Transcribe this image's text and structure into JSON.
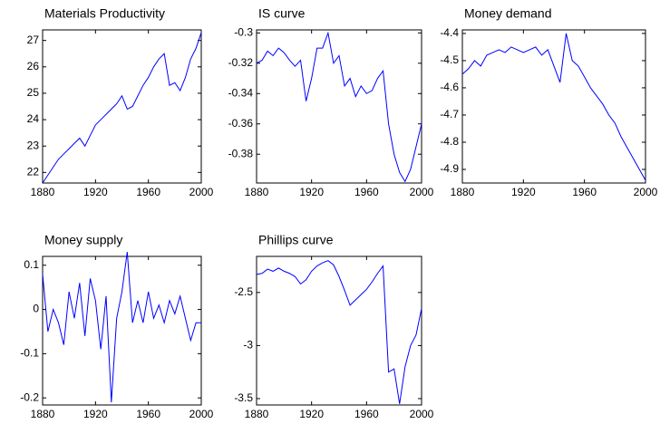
{
  "chart_data": [
    {
      "type": "line",
      "title": "Materials Productivity",
      "color": "#0000ff",
      "x": [
        1880,
        1884,
        1888,
        1892,
        1896,
        1900,
        1904,
        1908,
        1912,
        1916,
        1920,
        1924,
        1928,
        1932,
        1936,
        1940,
        1944,
        1948,
        1952,
        1956,
        1960,
        1964,
        1968,
        1972,
        1976,
        1980,
        1984,
        1988,
        1992,
        1996,
        2000
      ],
      "values": [
        21.6,
        21.9,
        22.2,
        22.5,
        22.7,
        22.9,
        23.1,
        23.3,
        23.0,
        23.4,
        23.8,
        24.0,
        24.2,
        24.4,
        24.6,
        24.9,
        24.4,
        24.5,
        24.9,
        25.3,
        25.6,
        26.0,
        26.3,
        26.5,
        25.3,
        25.4,
        25.1,
        25.6,
        26.3,
        26.7,
        27.3
      ],
      "xlim": [
        1880,
        2000
      ],
      "xticks": [
        1880,
        1920,
        1960,
        2000
      ],
      "ylim": [
        21.6,
        27.4
      ],
      "yticks": [
        22,
        23,
        24,
        25,
        26,
        27
      ]
    },
    {
      "type": "line",
      "title": "IS curve",
      "color": "#0000ff",
      "x": [
        1880,
        1884,
        1888,
        1892,
        1896,
        1900,
        1904,
        1908,
        1912,
        1916,
        1920,
        1924,
        1928,
        1932,
        1936,
        1940,
        1944,
        1948,
        1952,
        1956,
        1960,
        1964,
        1968,
        1972,
        1976,
        1980,
        1984,
        1988,
        1992,
        1996,
        2000
      ],
      "values": [
        -0.32,
        -0.318,
        -0.312,
        -0.315,
        -0.31,
        -0.313,
        -0.318,
        -0.322,
        -0.318,
        -0.345,
        -0.33,
        -0.31,
        -0.31,
        -0.3,
        -0.32,
        -0.315,
        -0.335,
        -0.33,
        -0.342,
        -0.335,
        -0.34,
        -0.338,
        -0.33,
        -0.325,
        -0.36,
        -0.38,
        -0.392,
        -0.398,
        -0.39,
        -0.375,
        -0.36
      ],
      "xlim": [
        1880,
        2000
      ],
      "xticks": [
        1880,
        1920,
        1960,
        2000
      ],
      "ylim": [
        -0.399,
        -0.298
      ],
      "yticks": [
        -0.38,
        -0.36,
        -0.34,
        -0.32,
        -0.3
      ]
    },
    {
      "type": "line",
      "title": "Money demand",
      "color": "#0000ff",
      "x": [
        1880,
        1884,
        1888,
        1892,
        1896,
        1900,
        1904,
        1908,
        1912,
        1916,
        1920,
        1924,
        1928,
        1932,
        1936,
        1940,
        1944,
        1948,
        1952,
        1956,
        1960,
        1964,
        1968,
        1972,
        1976,
        1980,
        1984,
        1988,
        1992,
        1996,
        2000
      ],
      "values": [
        -4.55,
        -4.53,
        -4.5,
        -4.52,
        -4.48,
        -4.47,
        -4.46,
        -4.47,
        -4.45,
        -4.46,
        -4.47,
        -4.46,
        -4.45,
        -4.48,
        -4.46,
        -4.52,
        -4.58,
        -4.4,
        -4.5,
        -4.52,
        -4.56,
        -4.6,
        -4.63,
        -4.66,
        -4.7,
        -4.73,
        -4.78,
        -4.82,
        -4.86,
        -4.9,
        -4.94
      ],
      "xlim": [
        1880,
        2000
      ],
      "xticks": [
        1880,
        1920,
        1960,
        2000
      ],
      "ylim": [
        -4.95,
        -4.387
      ],
      "yticks": [
        -4.9,
        -4.8,
        -4.7,
        -4.6,
        -4.5,
        -4.4
      ]
    },
    {
      "type": "line",
      "title": "Money supply",
      "color": "#0000ff",
      "x": [
        1880,
        1884,
        1888,
        1892,
        1896,
        1900,
        1904,
        1908,
        1912,
        1916,
        1920,
        1924,
        1928,
        1932,
        1936,
        1940,
        1944,
        1948,
        1952,
        1956,
        1960,
        1964,
        1968,
        1972,
        1976,
        1980,
        1984,
        1988,
        1992,
        1996,
        2000
      ],
      "values": [
        0.08,
        -0.05,
        0.0,
        -0.03,
        -0.08,
        0.04,
        -0.02,
        0.06,
        -0.06,
        0.07,
        0.02,
        -0.09,
        0.03,
        -0.21,
        -0.02,
        0.04,
        0.13,
        -0.03,
        0.02,
        -0.03,
        0.04,
        -0.02,
        0.01,
        -0.03,
        0.02,
        -0.01,
        0.03,
        -0.02,
        -0.07,
        -0.03,
        -0.03
      ],
      "xlim": [
        1880,
        2000
      ],
      "xticks": [
        1880,
        1920,
        1960,
        2000
      ],
      "ylim": [
        -0.216,
        0.12
      ],
      "yticks": [
        -0.2,
        -0.1,
        0,
        0.1
      ]
    },
    {
      "type": "line",
      "title": "Phillips curve",
      "color": "#0000ff",
      "x": [
        1880,
        1884,
        1888,
        1892,
        1896,
        1900,
        1904,
        1908,
        1912,
        1916,
        1920,
        1924,
        1928,
        1932,
        1936,
        1940,
        1944,
        1948,
        1952,
        1956,
        1960,
        1964,
        1968,
        1972,
        1976,
        1980,
        1984,
        1988,
        1992,
        1996,
        2000
      ],
      "values": [
        -2.33,
        -2.32,
        -2.28,
        -2.3,
        -2.27,
        -2.3,
        -2.32,
        -2.35,
        -2.42,
        -2.38,
        -2.3,
        -2.25,
        -2.22,
        -2.2,
        -2.24,
        -2.35,
        -2.48,
        -2.62,
        -2.57,
        -2.52,
        -2.47,
        -2.4,
        -2.32,
        -2.25,
        -3.25,
        -3.22,
        -3.55,
        -3.2,
        -3.0,
        -2.9,
        -2.65
      ],
      "xlim": [
        1880,
        2000
      ],
      "xticks": [
        1880,
        1920,
        1960,
        2000
      ],
      "ylim": [
        -3.56,
        -2.16
      ],
      "yticks": [
        -3.5,
        -3,
        -2.5
      ]
    }
  ]
}
